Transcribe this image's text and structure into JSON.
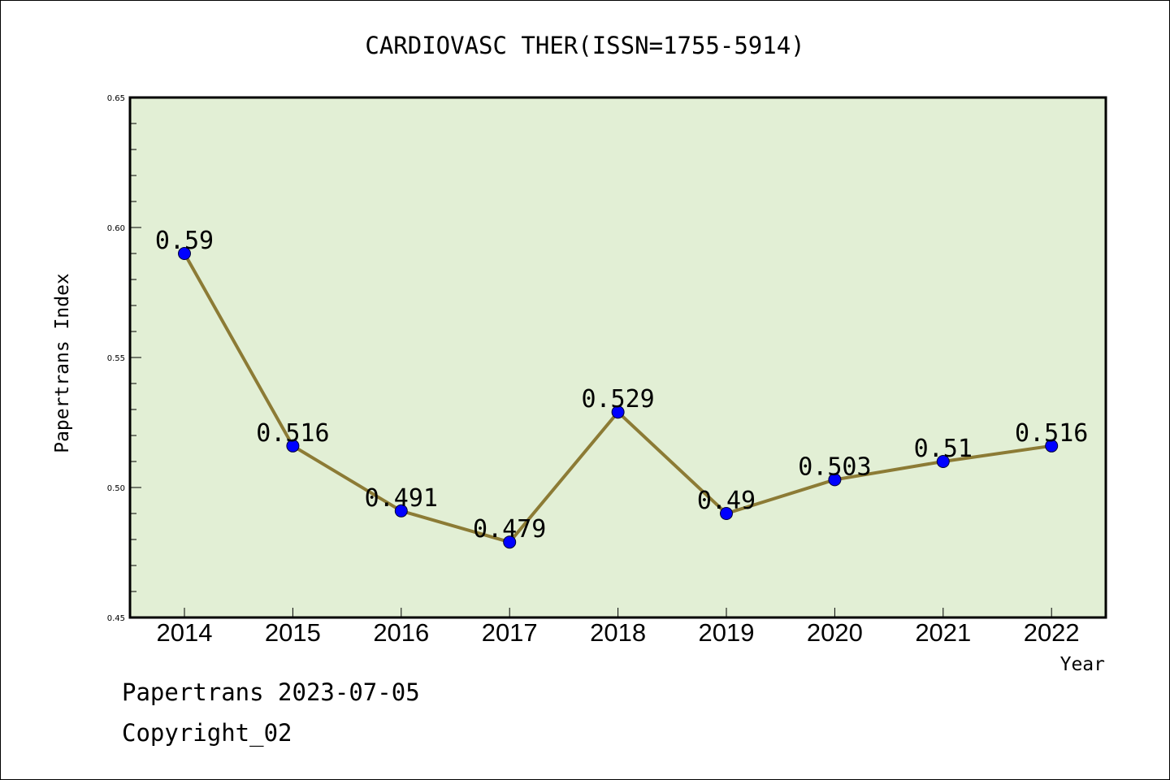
{
  "colors": {
    "plot_bg": "#e2efd5",
    "line": "#8c7b35",
    "marker": "#0000ff",
    "axis": "#000000"
  },
  "footer": {
    "line1": "Papertrans 2023-07-05",
    "line2": "Copyright_02"
  },
  "chart_data": {
    "type": "line",
    "title": "CARDIOVASC THER(ISSN=1755-5914)",
    "xlabel": "Year",
    "ylabel": "Papertrans Index",
    "categories": [
      "2014",
      "2015",
      "2016",
      "2017",
      "2018",
      "2019",
      "2020",
      "2021",
      "2022"
    ],
    "values": [
      0.59,
      0.516,
      0.491,
      0.479,
      0.529,
      0.49,
      0.503,
      0.51,
      0.516
    ],
    "data_labels": [
      "0.59",
      "0.516",
      "0.491",
      "0.479",
      "0.529",
      "0.49",
      "0.503",
      "0.51",
      "0.516"
    ],
    "ylim": [
      0.45,
      0.65
    ],
    "yticks": [
      "0.45",
      "0.50",
      "0.55",
      "0.60",
      "0.65"
    ],
    "grid": false,
    "legend": "none"
  }
}
